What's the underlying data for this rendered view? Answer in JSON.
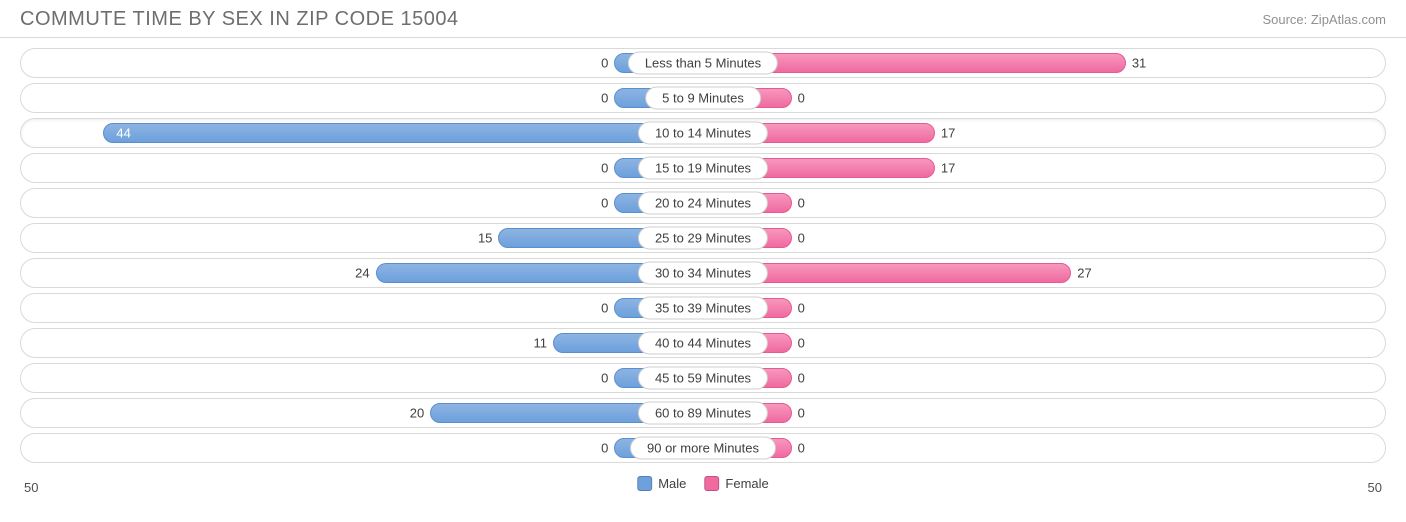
{
  "title": "COMMUTE TIME BY SEX IN ZIP CODE 15004",
  "source": "Source: ZipAtlas.com",
  "chart": {
    "type": "diverging-bar",
    "axis_max": 50,
    "axis_label_left": "50",
    "axis_label_right": "50",
    "min_bar_pct": 13,
    "background_color": "#ffffff",
    "track_border_color": "#d9d9d9",
    "text_color": "#404040",
    "label_pill_border": "#cfcfcf",
    "series": [
      {
        "key": "male",
        "label": "Male",
        "color": "#6da0dc",
        "side": "left"
      },
      {
        "key": "female",
        "label": "Female",
        "color": "#f06aa0",
        "side": "right"
      }
    ],
    "rows": [
      {
        "category": "Less than 5 Minutes",
        "male": 0,
        "female": 31
      },
      {
        "category": "5 to 9 Minutes",
        "male": 0,
        "female": 0
      },
      {
        "category": "10 to 14 Minutes",
        "male": 44,
        "female": 17,
        "focused": true
      },
      {
        "category": "15 to 19 Minutes",
        "male": 0,
        "female": 17
      },
      {
        "category": "20 to 24 Minutes",
        "male": 0,
        "female": 0
      },
      {
        "category": "25 to 29 Minutes",
        "male": 15,
        "female": 0
      },
      {
        "category": "30 to 34 Minutes",
        "male": 24,
        "female": 27
      },
      {
        "category": "35 to 39 Minutes",
        "male": 0,
        "female": 0
      },
      {
        "category": "40 to 44 Minutes",
        "male": 11,
        "female": 0
      },
      {
        "category": "45 to 59 Minutes",
        "male": 0,
        "female": 0
      },
      {
        "category": "60 to 89 Minutes",
        "male": 20,
        "female": 0
      },
      {
        "category": "90 or more Minutes",
        "male": 0,
        "female": 0
      }
    ]
  }
}
